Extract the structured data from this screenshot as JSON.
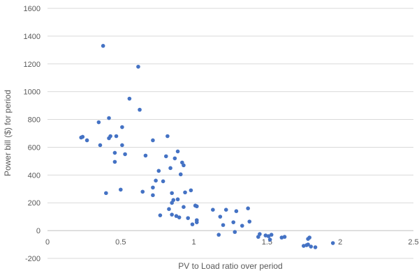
{
  "chart_data": {
    "type": "scatter",
    "title": "",
    "xlabel": "PV to Load ratio over period",
    "ylabel": "Power bill ($) for period",
    "xlim": [
      0,
      2.5
    ],
    "ylim": [
      -200,
      1600
    ],
    "x_ticks": [
      0,
      0.5,
      1,
      1.5,
      2,
      2.5
    ],
    "x_tick_labels": [
      "0",
      "0.5",
      "1",
      "1.5",
      "2",
      "2.5"
    ],
    "y_ticks": [
      -200,
      0,
      200,
      400,
      600,
      800,
      1000,
      1200,
      1400,
      1600
    ],
    "y_tick_labels": [
      "-200",
      "0",
      "200",
      "400",
      "600",
      "800",
      "1000",
      "1200",
      "1400",
      "1600"
    ],
    "grid": "horizontal",
    "legend": "none",
    "marker_color": "#4472c4",
    "points": [
      [
        0.38,
        1330
      ],
      [
        0.62,
        1180
      ],
      [
        0.56,
        950
      ],
      [
        0.63,
        870
      ],
      [
        0.42,
        810
      ],
      [
        0.35,
        780
      ],
      [
        0.51,
        745
      ],
      [
        0.23,
        670
      ],
      [
        0.24,
        675
      ],
      [
        0.27,
        650
      ],
      [
        0.43,
        680
      ],
      [
        0.47,
        680
      ],
      [
        0.42,
        665
      ],
      [
        0.82,
        680
      ],
      [
        0.72,
        650
      ],
      [
        0.36,
        615
      ],
      [
        0.51,
        615
      ],
      [
        0.46,
        560
      ],
      [
        0.53,
        550
      ],
      [
        0.67,
        540
      ],
      [
        0.81,
        535
      ],
      [
        0.89,
        570
      ],
      [
        0.87,
        520
      ],
      [
        0.46,
        495
      ],
      [
        0.92,
        490
      ],
      [
        0.93,
        470
      ],
      [
        0.84,
        450
      ],
      [
        0.76,
        430
      ],
      [
        0.91,
        405
      ],
      [
        0.79,
        355
      ],
      [
        0.74,
        360
      ],
      [
        0.72,
        310
      ],
      [
        0.5,
        295
      ],
      [
        0.4,
        270
      ],
      [
        0.65,
        280
      ],
      [
        0.72,
        255
      ],
      [
        0.85,
        270
      ],
      [
        0.94,
        275
      ],
      [
        0.98,
        290
      ],
      [
        0.86,
        220
      ],
      [
        0.89,
        225
      ],
      [
        0.85,
        200
      ],
      [
        0.93,
        170
      ],
      [
        0.83,
        155
      ],
      [
        1.01,
        180
      ],
      [
        1.02,
        175
      ],
      [
        1.13,
        150
      ],
      [
        1.22,
        150
      ],
      [
        1.29,
        140
      ],
      [
        1.37,
        160
      ],
      [
        0.77,
        110
      ],
      [
        0.85,
        115
      ],
      [
        0.88,
        105
      ],
      [
        0.9,
        95
      ],
      [
        0.96,
        90
      ],
      [
        1.18,
        100
      ],
      [
        1.02,
        75
      ],
      [
        1.02,
        60
      ],
      [
        0.99,
        45
      ],
      [
        1.2,
        40
      ],
      [
        1.27,
        60
      ],
      [
        1.33,
        35
      ],
      [
        1.38,
        65
      ],
      [
        1.17,
        -30
      ],
      [
        1.28,
        -10
      ],
      [
        1.45,
        -25
      ],
      [
        1.44,
        -45
      ],
      [
        1.49,
        -35
      ],
      [
        1.51,
        -40
      ],
      [
        1.53,
        -30
      ],
      [
        1.52,
        -65
      ],
      [
        1.6,
        -50
      ],
      [
        1.62,
        -45
      ],
      [
        1.75,
        -110
      ],
      [
        1.77,
        -105
      ],
      [
        1.78,
        -60
      ],
      [
        1.79,
        -50
      ],
      [
        1.78,
        -100
      ],
      [
        1.8,
        -115
      ],
      [
        1.83,
        -120
      ],
      [
        1.95,
        -90
      ]
    ]
  }
}
